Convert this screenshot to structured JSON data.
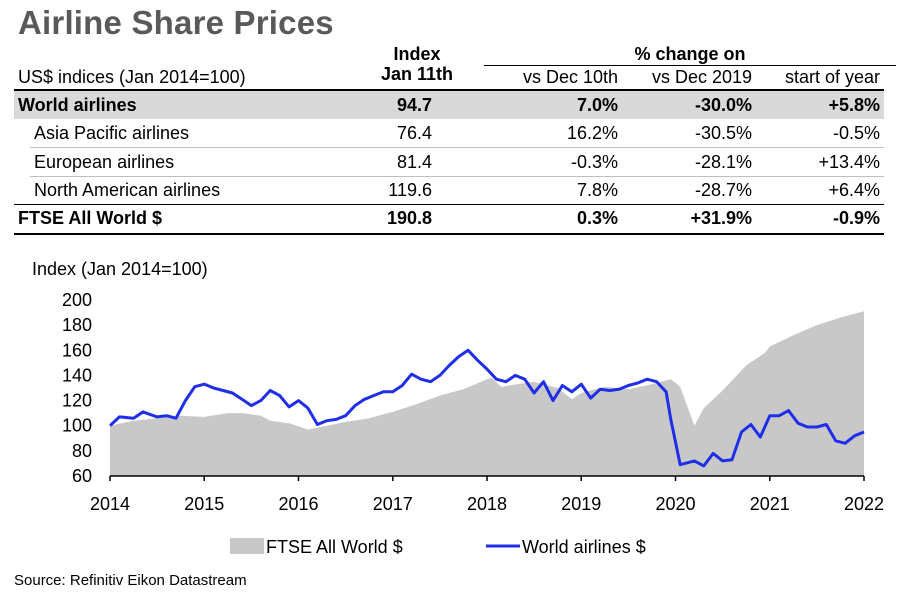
{
  "title": "Airline Share Prices",
  "table": {
    "subtitle": "US$ indices (Jan 2014=100)",
    "index_header": [
      "Index",
      "Jan 11th"
    ],
    "pct_header": "% change on",
    "sub_headers": [
      "vs Dec 10th",
      "vs Dec 2019",
      "start of year"
    ],
    "rows": [
      {
        "name": "World airlines",
        "index": "94.7",
        "dec10": "7.0%",
        "dec2019": "-30.0%",
        "soy": "+5.8%"
      },
      {
        "name": "Asia Pacific airlines",
        "index": "76.4",
        "dec10": "16.2%",
        "dec2019": "-30.5%",
        "soy": "-0.5%"
      },
      {
        "name": "European airlines",
        "index": "81.4",
        "dec10": "-0.3%",
        "dec2019": "-28.1%",
        "soy": "+13.4%"
      },
      {
        "name": "North American airlines",
        "index": "119.6",
        "dec10": "7.8%",
        "dec2019": "-28.7%",
        "soy": "+6.4%"
      },
      {
        "name": "FTSE All World $",
        "index": "190.8",
        "dec10": "0.3%",
        "dec2019": "+31.9%",
        "soy": "-0.9%"
      }
    ]
  },
  "chart_data": {
    "type": "line",
    "ylabel": "Index (Jan 2014=100)",
    "ylim": [
      60,
      200
    ],
    "yticks": [
      60,
      80,
      100,
      120,
      140,
      160,
      180,
      200
    ],
    "xlim": [
      2014,
      2022
    ],
    "xticks": [
      "2014",
      "2015",
      "2016",
      "2017",
      "2018",
      "2019",
      "2020",
      "2021",
      "2022"
    ],
    "grid": false,
    "legend_position": "bottom",
    "series": [
      {
        "name": "FTSE All World $",
        "style": "area",
        "color": "#c8c8c8",
        "x": [
          2014.0,
          2014.25,
          2014.5,
          2014.75,
          2015.0,
          2015.25,
          2015.4,
          2015.6,
          2015.7,
          2015.9,
          2016.1,
          2016.3,
          2016.5,
          2016.75,
          2017.0,
          2017.25,
          2017.5,
          2017.75,
          2018.0,
          2018.05,
          2018.15,
          2018.5,
          2018.75,
          2018.9,
          2019.0,
          2019.25,
          2019.5,
          2019.75,
          2019.95,
          2020.05,
          2020.2,
          2020.3,
          2020.5,
          2020.75,
          2020.95,
          2021.0,
          2021.25,
          2021.5,
          2021.75,
          2021.9,
          2022.0
        ],
        "values": [
          100,
          104,
          106,
          108,
          107,
          110,
          110,
          108,
          104,
          102,
          97,
          100,
          103,
          106,
          111,
          117,
          124,
          129,
          137,
          138,
          131,
          135,
          130,
          121,
          126,
          131,
          129,
          133,
          137,
          131,
          100,
          114,
          128,
          148,
          158,
          163,
          172,
          180,
          186,
          189,
          191
        ]
      },
      {
        "name": "World airlines $",
        "style": "line",
        "color": "#1f2ee8",
        "x": [
          2014.0,
          2014.1,
          2014.25,
          2014.35,
          2014.5,
          2014.6,
          2014.7,
          2014.8,
          2014.9,
          2015.0,
          2015.1,
          2015.2,
          2015.3,
          2015.4,
          2015.5,
          2015.6,
          2015.7,
          2015.8,
          2015.9,
          2016.0,
          2016.1,
          2016.2,
          2016.3,
          2016.4,
          2016.5,
          2016.6,
          2016.7,
          2016.8,
          2016.9,
          2017.0,
          2017.1,
          2017.2,
          2017.3,
          2017.4,
          2017.5,
          2017.6,
          2017.7,
          2017.8,
          2017.9,
          2018.0,
          2018.1,
          2018.2,
          2018.3,
          2018.4,
          2018.5,
          2018.6,
          2018.7,
          2018.8,
          2018.9,
          2019.0,
          2019.1,
          2019.2,
          2019.3,
          2019.4,
          2019.5,
          2019.6,
          2019.7,
          2019.8,
          2019.9,
          2019.95,
          2020.05,
          2020.1,
          2020.15,
          2020.2,
          2020.3,
          2020.4,
          2020.5,
          2020.6,
          2020.7,
          2020.8,
          2020.9,
          2021.0,
          2021.1,
          2021.2,
          2021.3,
          2021.4,
          2021.5,
          2021.6,
          2021.7,
          2021.8,
          2021.9,
          2022.0
        ],
        "values": [
          100,
          107,
          106,
          111,
          107,
          108,
          106,
          120,
          131,
          133,
          130,
          128,
          126,
          121,
          116,
          120,
          128,
          124,
          115,
          120,
          114,
          101,
          104,
          105,
          108,
          116,
          121,
          124,
          127,
          127,
          132,
          141,
          137,
          135,
          140,
          148,
          155,
          160,
          152,
          145,
          137,
          135,
          140,
          137,
          126,
          135,
          120,
          132,
          127,
          133,
          122,
          129,
          128,
          129,
          132,
          134,
          137,
          135,
          127,
          105,
          69,
          70,
          71,
          72,
          68,
          78,
          72,
          73,
          95,
          101,
          91,
          108,
          108,
          112,
          102,
          99,
          99,
          101,
          88,
          86,
          92,
          95
        ]
      }
    ]
  },
  "source": "Source: Refinitiv Eikon Datastream"
}
